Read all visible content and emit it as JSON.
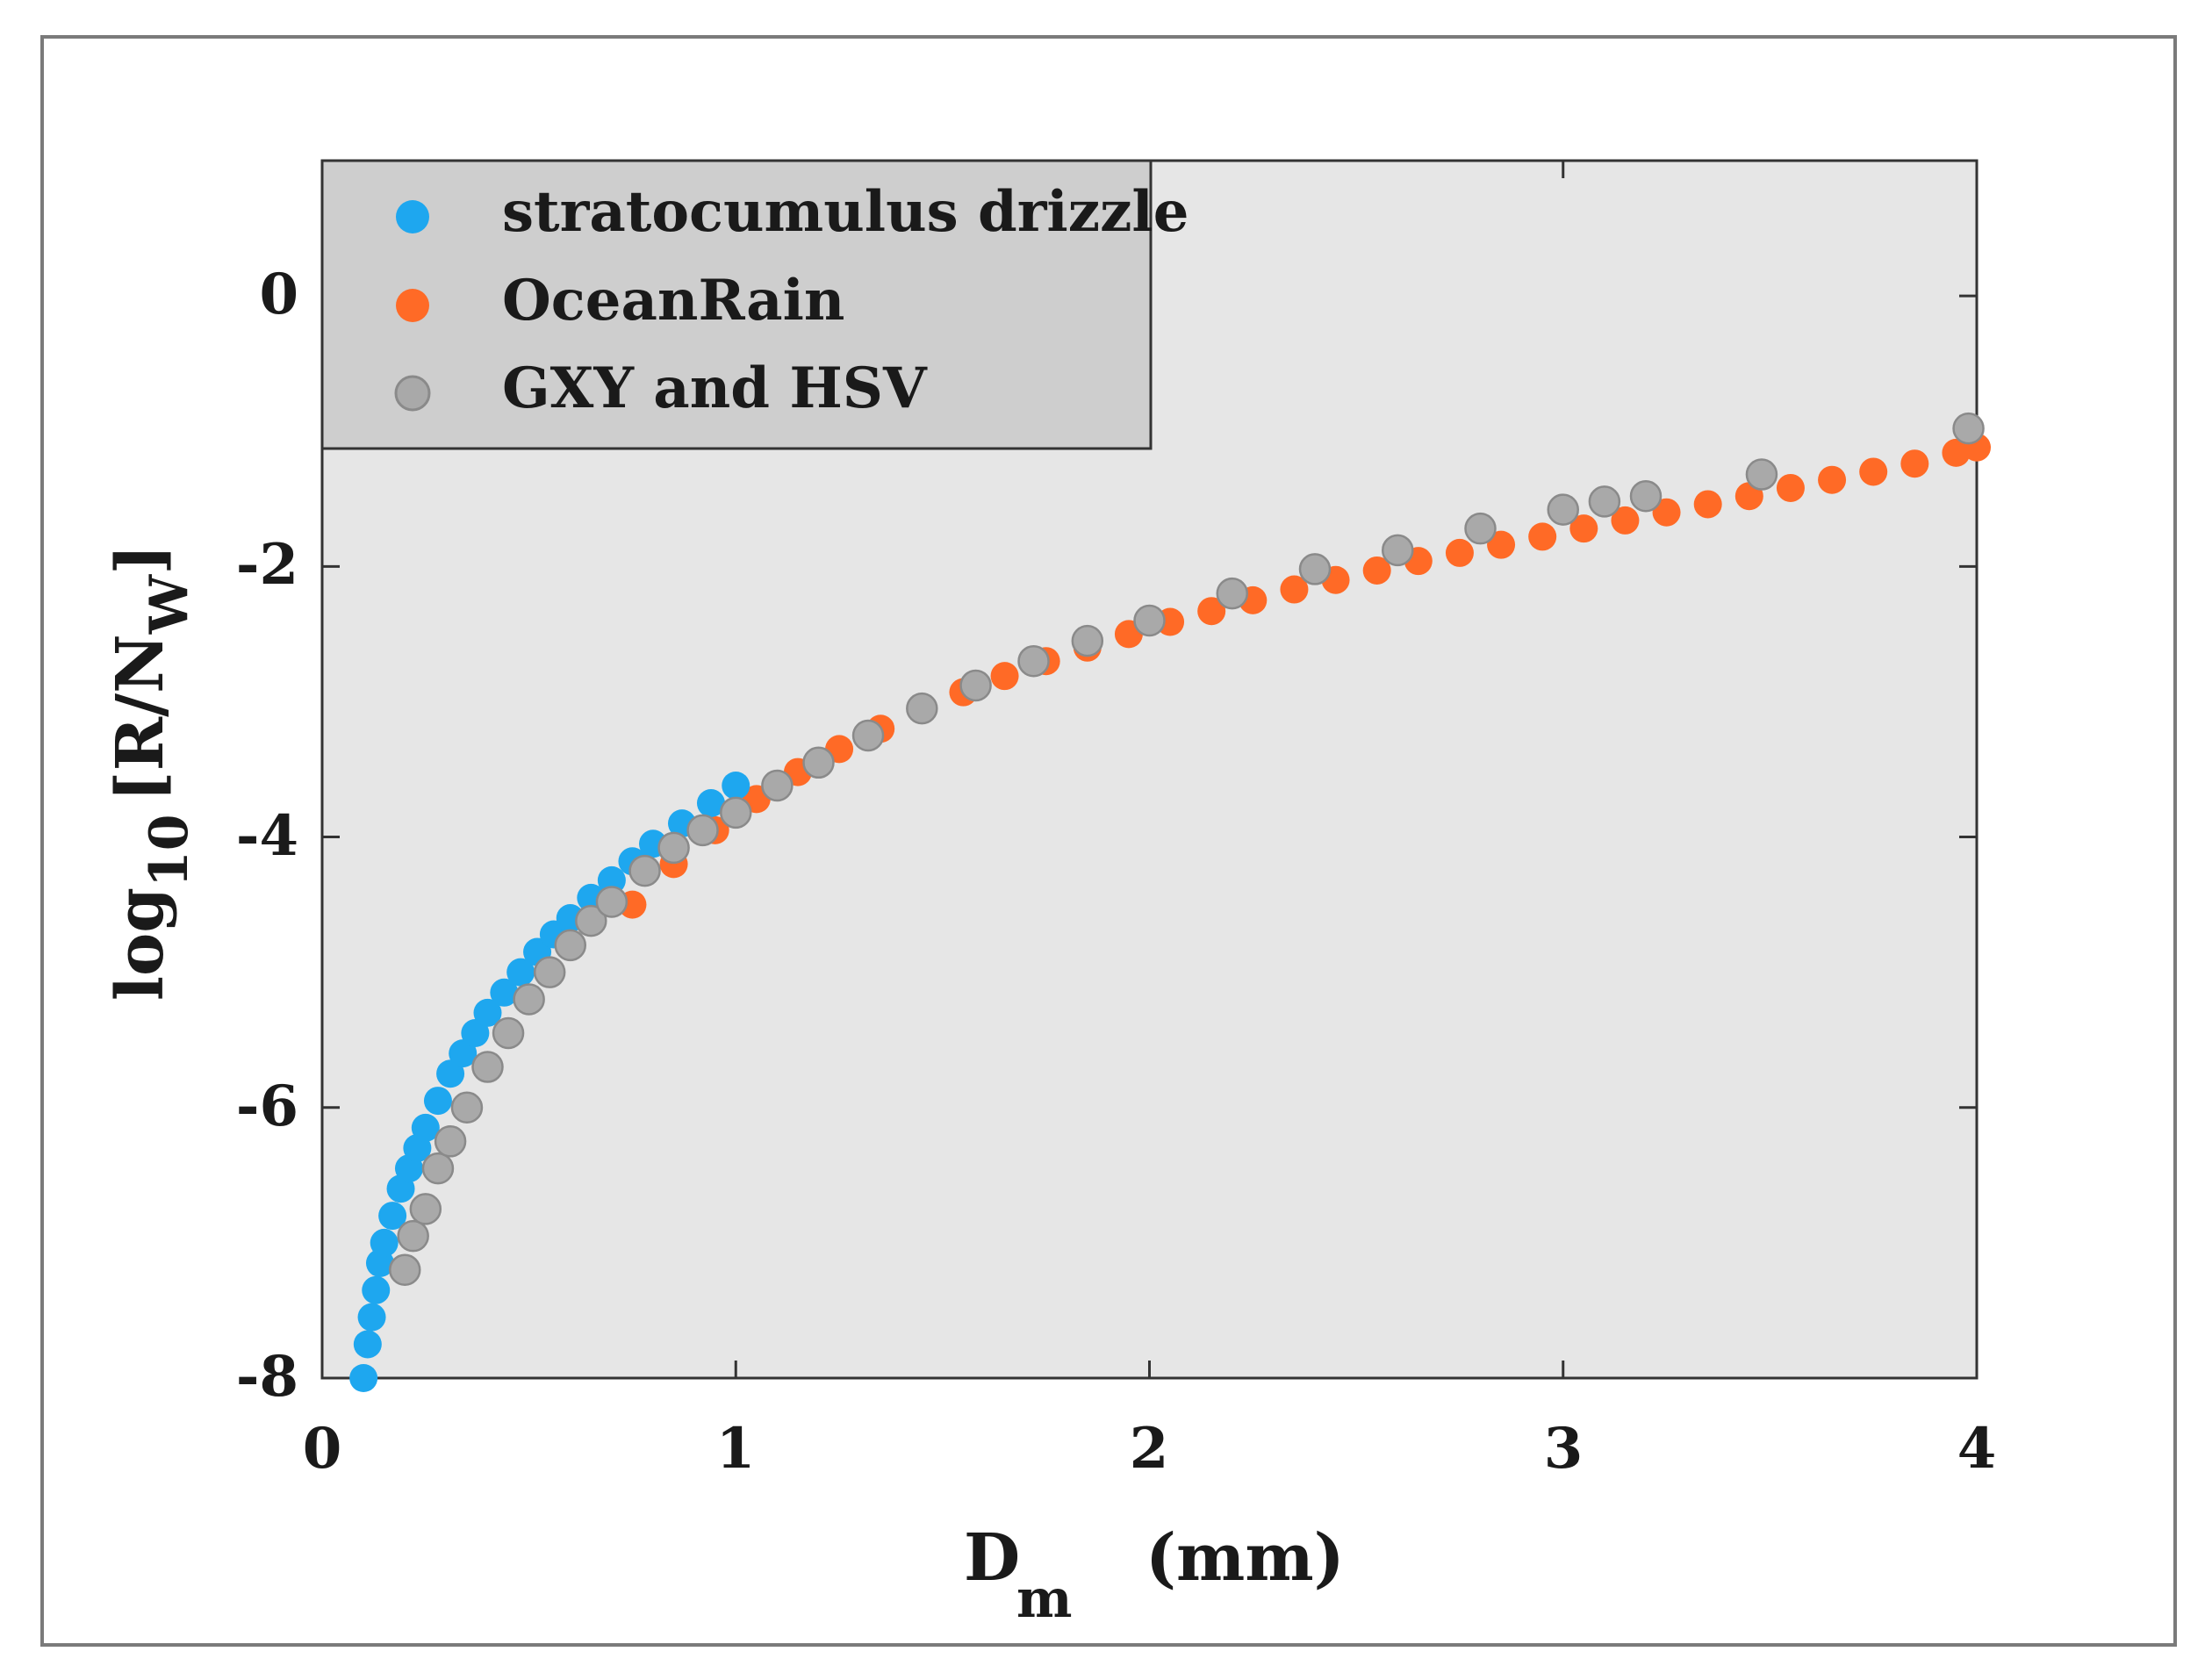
{
  "chart_data": {
    "type": "scatter",
    "title": "",
    "xlabel": {
      "main": "D",
      "sub": "m",
      "units": "(mm)"
    },
    "ylabel": {
      "main": "log",
      "sub": "10",
      "bracket_open": "[R/N",
      "sub2": "W",
      "bracket_close": "]"
    },
    "xlim": [
      0,
      4
    ],
    "ylim": [
      -8,
      1
    ],
    "xticks": [
      0,
      1,
      2,
      3,
      4
    ],
    "xtick_labels": [
      "0",
      "1",
      "2",
      "3",
      "4"
    ],
    "yticks": [
      0,
      -2,
      -4,
      -6,
      -8
    ],
    "ytick_labels": [
      "0",
      "-2",
      "-4",
      "-6",
      "-8"
    ],
    "grid": false,
    "legend_position": "top-left",
    "series": [
      {
        "name": "stratocumulus drizzle",
        "color": "#1ea7ef",
        "x": [
          0.1,
          0.11,
          0.12,
          0.13,
          0.14,
          0.15,
          0.17,
          0.19,
          0.21,
          0.23,
          0.25,
          0.28,
          0.31,
          0.34,
          0.37,
          0.4,
          0.44,
          0.48,
          0.52,
          0.56,
          0.6,
          0.65,
          0.7,
          0.75,
          0.8,
          0.87,
          0.94,
          1.0
        ],
        "y": [
          -8.0,
          -7.75,
          -7.55,
          -7.35,
          -7.15,
          -7.0,
          -6.8,
          -6.6,
          -6.45,
          -6.3,
          -6.15,
          -5.95,
          -5.75,
          -5.6,
          -5.45,
          -5.3,
          -5.15,
          -5.0,
          -4.85,
          -4.72,
          -4.6,
          -4.45,
          -4.32,
          -4.18,
          -4.05,
          -3.9,
          -3.75,
          -3.62
        ]
      },
      {
        "name": "OceanRain",
        "color": "#ff6a26",
        "x": [
          0.75,
          0.85,
          0.95,
          1.05,
          1.15,
          1.25,
          1.35,
          1.45,
          1.55,
          1.65,
          1.75,
          1.85,
          1.95,
          2.05,
          2.15,
          2.25,
          2.35,
          2.45,
          2.55,
          2.65,
          2.75,
          2.85,
          2.95,
          3.05,
          3.15,
          3.25,
          3.35,
          3.45,
          3.55,
          3.65,
          3.75,
          3.85,
          3.95,
          4.0
        ],
        "y": [
          -4.5,
          -4.2,
          -3.95,
          -3.72,
          -3.52,
          -3.35,
          -3.2,
          -3.06,
          -2.93,
          -2.81,
          -2.7,
          -2.6,
          -2.5,
          -2.41,
          -2.33,
          -2.25,
          -2.17,
          -2.1,
          -2.03,
          -1.96,
          -1.9,
          -1.84,
          -1.78,
          -1.72,
          -1.66,
          -1.6,
          -1.54,
          -1.48,
          -1.42,
          -1.36,
          -1.3,
          -1.24,
          -1.16,
          -1.12
        ]
      },
      {
        "name": "GXY and HSV",
        "color": "#a9a9a9",
        "x": [
          0.2,
          0.22,
          0.25,
          0.28,
          0.31,
          0.35,
          0.4,
          0.45,
          0.5,
          0.55,
          0.6,
          0.65,
          0.7,
          0.78,
          0.85,
          0.92,
          1.0,
          1.1,
          1.2,
          1.32,
          1.45,
          1.58,
          1.72,
          1.85,
          2.0,
          2.2,
          2.4,
          2.6,
          2.8,
          3.0,
          3.1,
          3.2,
          3.48,
          3.98
        ],
        "y": [
          -7.2,
          -6.95,
          -6.75,
          -6.45,
          -6.25,
          -6.0,
          -5.7,
          -5.45,
          -5.2,
          -5.0,
          -4.8,
          -4.62,
          -4.48,
          -4.25,
          -4.08,
          -3.95,
          -3.82,
          -3.62,
          -3.45,
          -3.25,
          -3.05,
          -2.88,
          -2.7,
          -2.55,
          -2.4,
          -2.2,
          -2.02,
          -1.88,
          -1.72,
          -1.58,
          -1.52,
          -1.48,
          -1.32,
          -0.98
        ]
      }
    ]
  }
}
